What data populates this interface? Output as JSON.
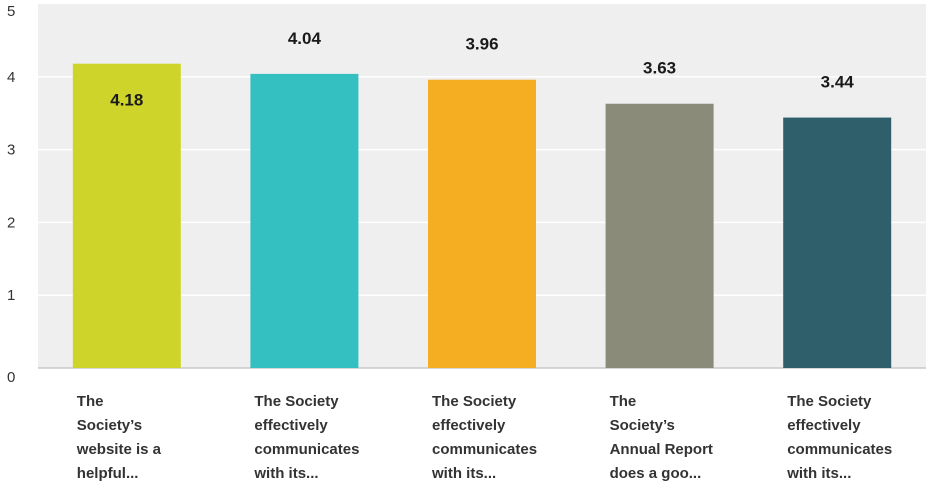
{
  "chart_data": {
    "type": "bar",
    "categories": [
      [
        "The",
        "Society’s",
        "website is a",
        "helpful..."
      ],
      [
        "The Society",
        "effectively",
        "communicates",
        "with its..."
      ],
      [
        "The Society",
        "effectively",
        "communicates",
        "with its..."
      ],
      [
        "The",
        "Society’s",
        "Annual Report",
        "does a goo..."
      ],
      [
        "The Society",
        "effectively",
        "communicates",
        "with its..."
      ]
    ],
    "values": [
      4.18,
      4.04,
      3.96,
      3.63,
      3.44
    ],
    "value_labels": [
      "4.18",
      "4.04",
      "3.96",
      "3.63",
      "3.44"
    ],
    "colors": [
      "#cfd42b",
      "#34bfc0",
      "#f5ae22",
      "#8a8b79",
      "#2e5f6b"
    ],
    "yticks": [
      "0",
      "1",
      "2",
      "3",
      "4",
      "5"
    ],
    "ylim": [
      0,
      5
    ],
    "grid": true,
    "plot_background": "#efefef",
    "gridline_color": "#ffffff",
    "axis_color": "#c9c9c9"
  }
}
